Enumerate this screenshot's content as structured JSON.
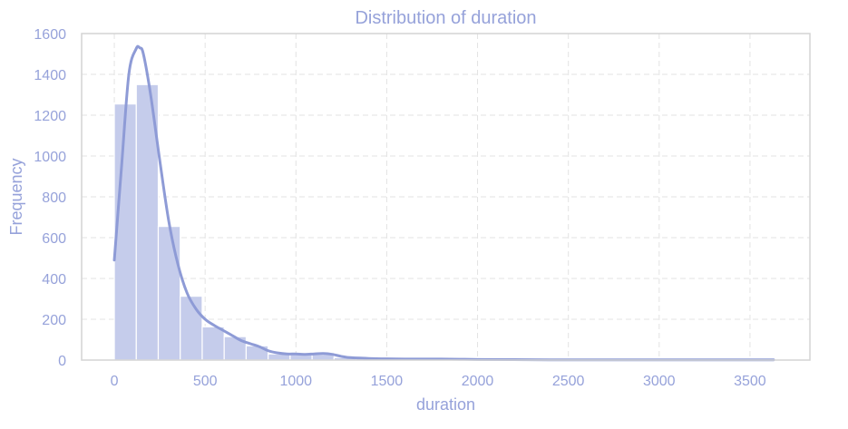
{
  "chart_data": {
    "type": "bar",
    "title": "Distribution of duration",
    "xlabel": "duration",
    "ylabel": "Frequency",
    "xlim": [
      -180,
      3830
    ],
    "ylim": [
      0,
      1600
    ],
    "xticks": [
      0,
      500,
      1000,
      1500,
      2000,
      2500,
      3000,
      3500
    ],
    "xtick_labels": [
      "0",
      "500",
      "1000",
      "1500",
      "2000",
      "2500",
      "3000",
      "3500"
    ],
    "yticks": [
      0,
      200,
      400,
      600,
      800,
      1000,
      1200,
      1400,
      1600
    ],
    "ytick_labels": [
      "0",
      "200",
      "400",
      "600",
      "800",
      "1000",
      "1200",
      "1400",
      "1600"
    ],
    "grid": true,
    "grid_style": "dashed",
    "bins": [
      {
        "start": 0,
        "end": 121,
        "count": 1255
      },
      {
        "start": 121,
        "end": 242,
        "count": 1350
      },
      {
        "start": 242,
        "end": 363,
        "count": 655
      },
      {
        "start": 363,
        "end": 484,
        "count": 313
      },
      {
        "start": 484,
        "end": 605,
        "count": 163
      },
      {
        "start": 605,
        "end": 726,
        "count": 115
      },
      {
        "start": 726,
        "end": 847,
        "count": 70
      },
      {
        "start": 847,
        "end": 968,
        "count": 30
      },
      {
        "start": 968,
        "end": 1089,
        "count": 30
      },
      {
        "start": 1089,
        "end": 1210,
        "count": 28
      },
      {
        "start": 1210,
        "end": 1331,
        "count": 12
      },
      {
        "start": 1331,
        "end": 1452,
        "count": 8
      },
      {
        "start": 1452,
        "end": 1573,
        "count": 5
      },
      {
        "start": 1573,
        "end": 1694,
        "count": 4
      },
      {
        "start": 1694,
        "end": 1815,
        "count": 4
      },
      {
        "start": 1815,
        "end": 1936,
        "count": 5
      },
      {
        "start": 1936,
        "end": 2057,
        "count": 3
      },
      {
        "start": 2057,
        "end": 2178,
        "count": 2
      },
      {
        "start": 2178,
        "end": 2299,
        "count": 2
      },
      {
        "start": 2299,
        "end": 2420,
        "count": 1
      },
      {
        "start": 2420,
        "end": 2541,
        "count": 1
      },
      {
        "start": 2541,
        "end": 2662,
        "count": 1
      },
      {
        "start": 2662,
        "end": 2783,
        "count": 1
      },
      {
        "start": 2783,
        "end": 2904,
        "count": 1
      },
      {
        "start": 2904,
        "end": 3025,
        "count": 1
      },
      {
        "start": 3025,
        "end": 3146,
        "count": 1
      },
      {
        "start": 3146,
        "end": 3267,
        "count": 1
      },
      {
        "start": 3267,
        "end": 3388,
        "count": 1
      },
      {
        "start": 3388,
        "end": 3509,
        "count": 1
      },
      {
        "start": 3509,
        "end": 3630,
        "count": 1
      }
    ],
    "kde": {
      "x": [
        0,
        40,
        80,
        120,
        140,
        160,
        200,
        250,
        300,
        350,
        400,
        450,
        500,
        550,
        600,
        650,
        700,
        750,
        800,
        850,
        900,
        950,
        1000,
        1050,
        1100,
        1150,
        1200,
        1250,
        1300,
        1400,
        1500,
        1600,
        1700,
        1800,
        1900,
        2000,
        2200,
        2500,
        2800,
        3100,
        3400,
        3630
      ],
      "y": [
        490,
        950,
        1400,
        1525,
        1530,
        1500,
        1300,
        980,
        680,
        470,
        330,
        250,
        200,
        170,
        145,
        120,
        95,
        80,
        65,
        45,
        35,
        30,
        30,
        28,
        30,
        32,
        28,
        18,
        12,
        8,
        6,
        5,
        5,
        5,
        4,
        3,
        2,
        1,
        1,
        1,
        1,
        1
      ]
    },
    "colors": {
      "bar_fill": "#c5cceb",
      "kde_line": "#8e9bd6",
      "text": "#96a2da",
      "grid": "#e3e3e3",
      "frame": "#d4d4d4"
    }
  }
}
